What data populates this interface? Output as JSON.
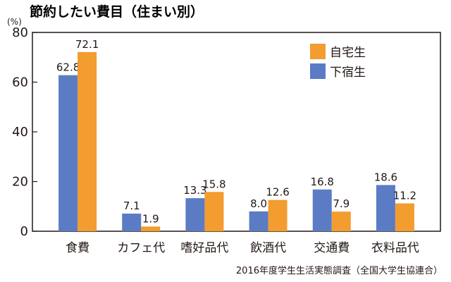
{
  "title": "節約したい費目（住まい別）",
  "source": "2016年度学生生活実態調査（全国大学生協連合）",
  "colors": {
    "自宅生": "#f39c2f",
    "下宿生": "#5b7cc4",
    "axis": "#231815"
  },
  "chart_data": {
    "type": "bar",
    "categories": [
      "食費",
      "カフェ代",
      "嗜好品代",
      "飲酒代",
      "交通費",
      "衣料品代"
    ],
    "series": [
      {
        "name": "下宿生",
        "values": [
          62.8,
          7.1,
          13.3,
          8.0,
          16.8,
          18.6
        ],
        "labels": [
          "62.8",
          "7.1",
          "13.3",
          "8.0",
          "16.8",
          "18.6"
        ]
      },
      {
        "name": "自宅生",
        "values": [
          72.1,
          1.9,
          15.8,
          12.6,
          7.9,
          11.2
        ],
        "labels": [
          "72.1",
          "1.9",
          "15.8",
          "12.6",
          "7.9",
          "11.2"
        ]
      }
    ],
    "legend": [
      "自宅生",
      "下宿生"
    ],
    "legend_position": "top-right",
    "yunit": "(%)",
    "ylim": [
      0,
      80
    ],
    "yticks": [
      "0",
      "20",
      "40",
      "60",
      "80"
    ],
    "grid": false
  }
}
